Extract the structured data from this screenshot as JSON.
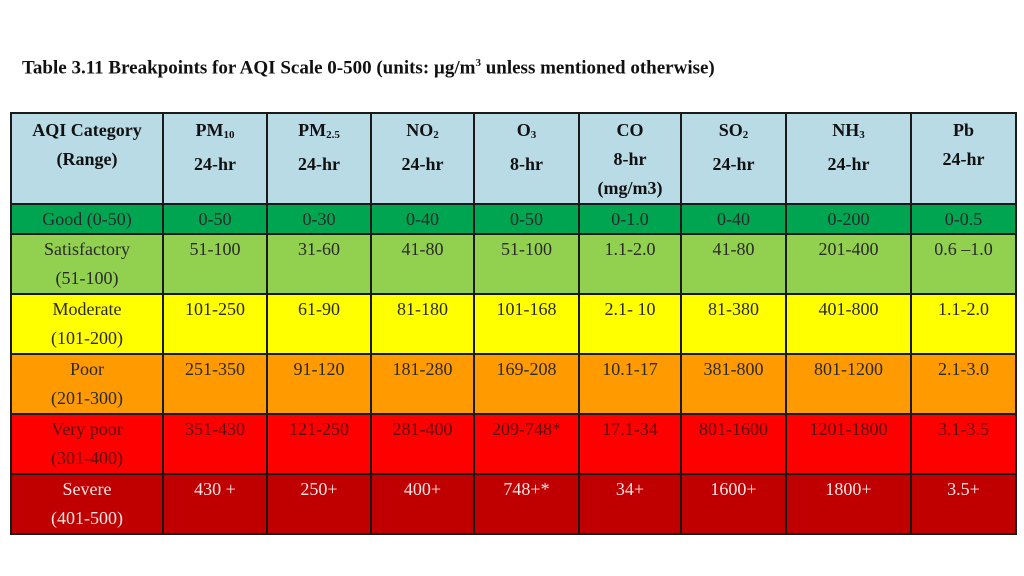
{
  "title": {
    "before_sup": "Table 3.11 Breakpoints for AQI Scale 0-500 (units: µg/m",
    "sup": "3",
    "after_sup": " unless mentioned otherwise)"
  },
  "colors": {
    "header": "#b8dbe6",
    "good": "#00a551",
    "satisfactory": "#92d050",
    "moderate": "#ffff00",
    "poor": "#ff9a00",
    "very_poor": "#ff0000",
    "severe": "#c00000"
  },
  "headers": [
    {
      "name": "AQI Category",
      "sub": "",
      "line2": "(Range)",
      "line3": ""
    },
    {
      "name": "PM",
      "sub": "10",
      "line2": "24-hr",
      "line3": ""
    },
    {
      "name": "PM",
      "sub": "2.5",
      "line2": "24-hr",
      "line3": ""
    },
    {
      "name": "NO",
      "sub": "2",
      "line2": "24-hr",
      "line3": ""
    },
    {
      "name": "O",
      "sub": "3",
      "line2": "8-hr",
      "line3": ""
    },
    {
      "name": "CO",
      "sub": "",
      "line2": "8-hr",
      "line3": "(mg/m3)"
    },
    {
      "name": "SO",
      "sub": "2",
      "line2": "24-hr",
      "line3": ""
    },
    {
      "name": "NH",
      "sub": "3",
      "line2": "24-hr",
      "line3": ""
    },
    {
      "name": "Pb",
      "sub": "",
      "line2": "24-hr",
      "line3": ""
    }
  ],
  "rows": [
    {
      "category": "Good (0-50)",
      "range": "",
      "values": [
        "0-50",
        "0-30",
        "0-40",
        "0-50",
        "0-1.0",
        "0-40",
        "0-200",
        "0-0.5"
      ]
    },
    {
      "category": "Satisfactory",
      "range": "(51-100)",
      "values": [
        "51-100",
        "31-60",
        "41-80",
        "51-100",
        "1.1-2.0",
        "41-80",
        "201-400",
        "0.6 –1.0"
      ]
    },
    {
      "category": "Moderate",
      "range": "(101-200)",
      "values": [
        "101-250",
        "61-90",
        "81-180",
        "101-168",
        "2.1- 10",
        "81-380",
        "401-800",
        "1.1-2.0"
      ]
    },
    {
      "category": "Poor",
      "range": "(201-300)",
      "values": [
        "251-350",
        "91-120",
        "181-280",
        "169-208",
        "10.1-17",
        "381-800",
        "801-1200",
        "2.1-3.0"
      ]
    },
    {
      "category": "Very poor",
      "range": "(301-400)",
      "values": [
        "351-430",
        "121-250",
        "281-400",
        "209-748*",
        "17.1-34",
        "801-1600",
        "1201-1800",
        "3.1-3.5"
      ]
    },
    {
      "category": "Severe",
      "range": "(401-500)",
      "values": [
        "430 +",
        "250+",
        "400+",
        "748+*",
        "34+",
        "1600+",
        "1800+",
        "3.5+"
      ]
    }
  ]
}
